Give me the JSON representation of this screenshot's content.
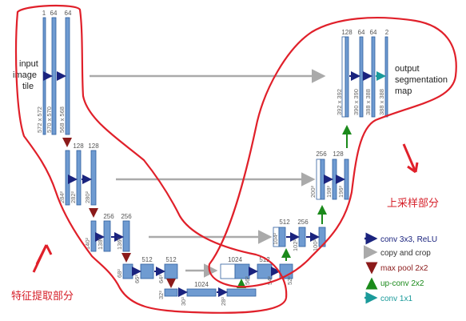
{
  "labels": {
    "input": [
      "input",
      "image",
      "tile"
    ],
    "output": [
      "output",
      "segmentation",
      "map"
    ],
    "encoder": "特征提取部分",
    "decoder": "上采样部分"
  },
  "channels": {
    "l1": [
      "1",
      "64",
      "64"
    ],
    "l2": [
      "128",
      "128"
    ],
    "l3": [
      "256",
      "256"
    ],
    "l4": [
      "512",
      "512"
    ],
    "l5": [
      "1024"
    ],
    "u4": [
      "1024",
      "512"
    ],
    "u3": [
      "512",
      "256"
    ],
    "u2": [
      "256",
      "128"
    ],
    "u1": [
      "128",
      "64",
      "64",
      "2"
    ]
  },
  "dims": {
    "l1": [
      "572 x 572",
      "570 x 570",
      "568 x 568"
    ],
    "l2": [
      "284²",
      "282²",
      "280²"
    ],
    "l3": [
      "140²",
      "138²",
      "136²"
    ],
    "l4": [
      "68²",
      "66²",
      "64²"
    ],
    "l5": [
      "32²",
      "30²",
      "28²"
    ],
    "u4": [
      "56²",
      "54²",
      "52²"
    ],
    "u3": [
      "104²",
      "102²",
      "100²"
    ],
    "u2": [
      "200²",
      "198²",
      "196²"
    ],
    "u1": [
      "392 x 392",
      "390 x 390",
      "388 x 388",
      "388 x 388"
    ]
  },
  "legend": {
    "conv": "conv 3x3, ReLU",
    "copy": "copy and crop",
    "pool": "max pool 2x2",
    "up": "up-conv 2x2",
    "out": "conv 1x1"
  },
  "colors": {
    "feature_map": "#6f9bd1",
    "feature_border": "#2f5f9f",
    "conv_arrow": "#1a237e",
    "copy_arrow": "#aaaaaa",
    "pool_arrow": "#8b1a1a",
    "up_arrow": "#1b8a1b",
    "out_arrow": "#1a9a9a",
    "annotation": "#d6202a"
  }
}
